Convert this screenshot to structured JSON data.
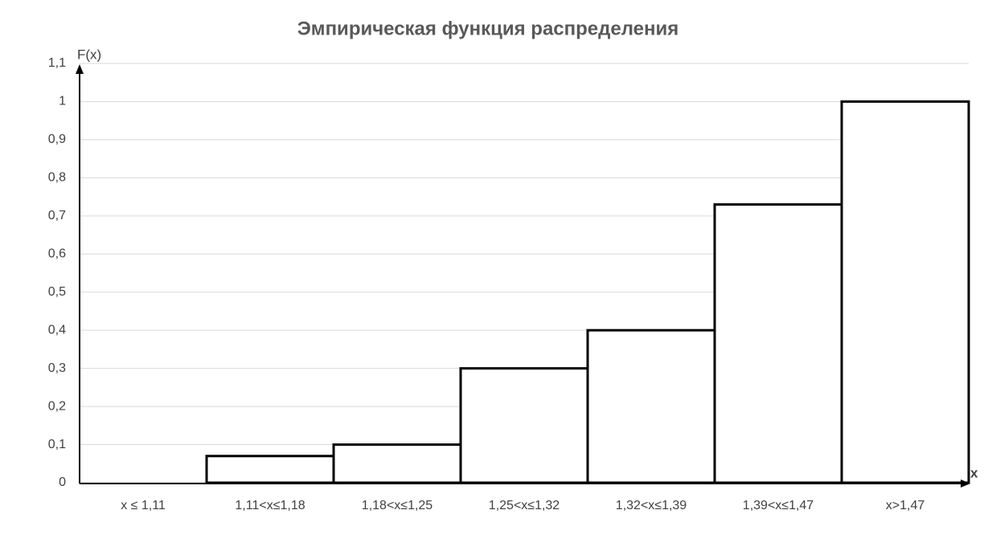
{
  "chart_data": {
    "type": "bar",
    "title": "Эмпирическая функция распределения",
    "ylabel": "F(x)",
    "xlabel": "x",
    "categories": [
      "x ≤ 1,11",
      "1,11<x≤1,18",
      "1,18<x≤1,25",
      "1,25<x≤1,32",
      "1,32<x≤1,39",
      "1,39<x≤1,47",
      "x>1,47"
    ],
    "values": [
      0,
      0.07,
      0.1,
      0.3,
      0.4,
      0.73,
      1
    ],
    "color": "#ffffff",
    "edgecolor": "#000000",
    "ylim": [
      0,
      1.1
    ],
    "yticks": [
      0,
      {
        "value": 0.1,
        "label": "0,1"
      },
      {
        "value": 0.2,
        "label": "0,2"
      },
      {
        "value": 0.3,
        "label": "0,3"
      },
      {
        "value": 0.4,
        "label": "0,4"
      },
      {
        "value": 0.5,
        "label": "0,5"
      },
      {
        "value": 0.6,
        "label": "0,6"
      },
      {
        "value": 0.7,
        "label": "0,7"
      },
      {
        "value": 0.8,
        "label": "0,8"
      },
      {
        "value": 0.9,
        "label": "0,9"
      },
      1,
      {
        "value": 1.1,
        "label": "1,1"
      }
    ],
    "grid": true
  }
}
